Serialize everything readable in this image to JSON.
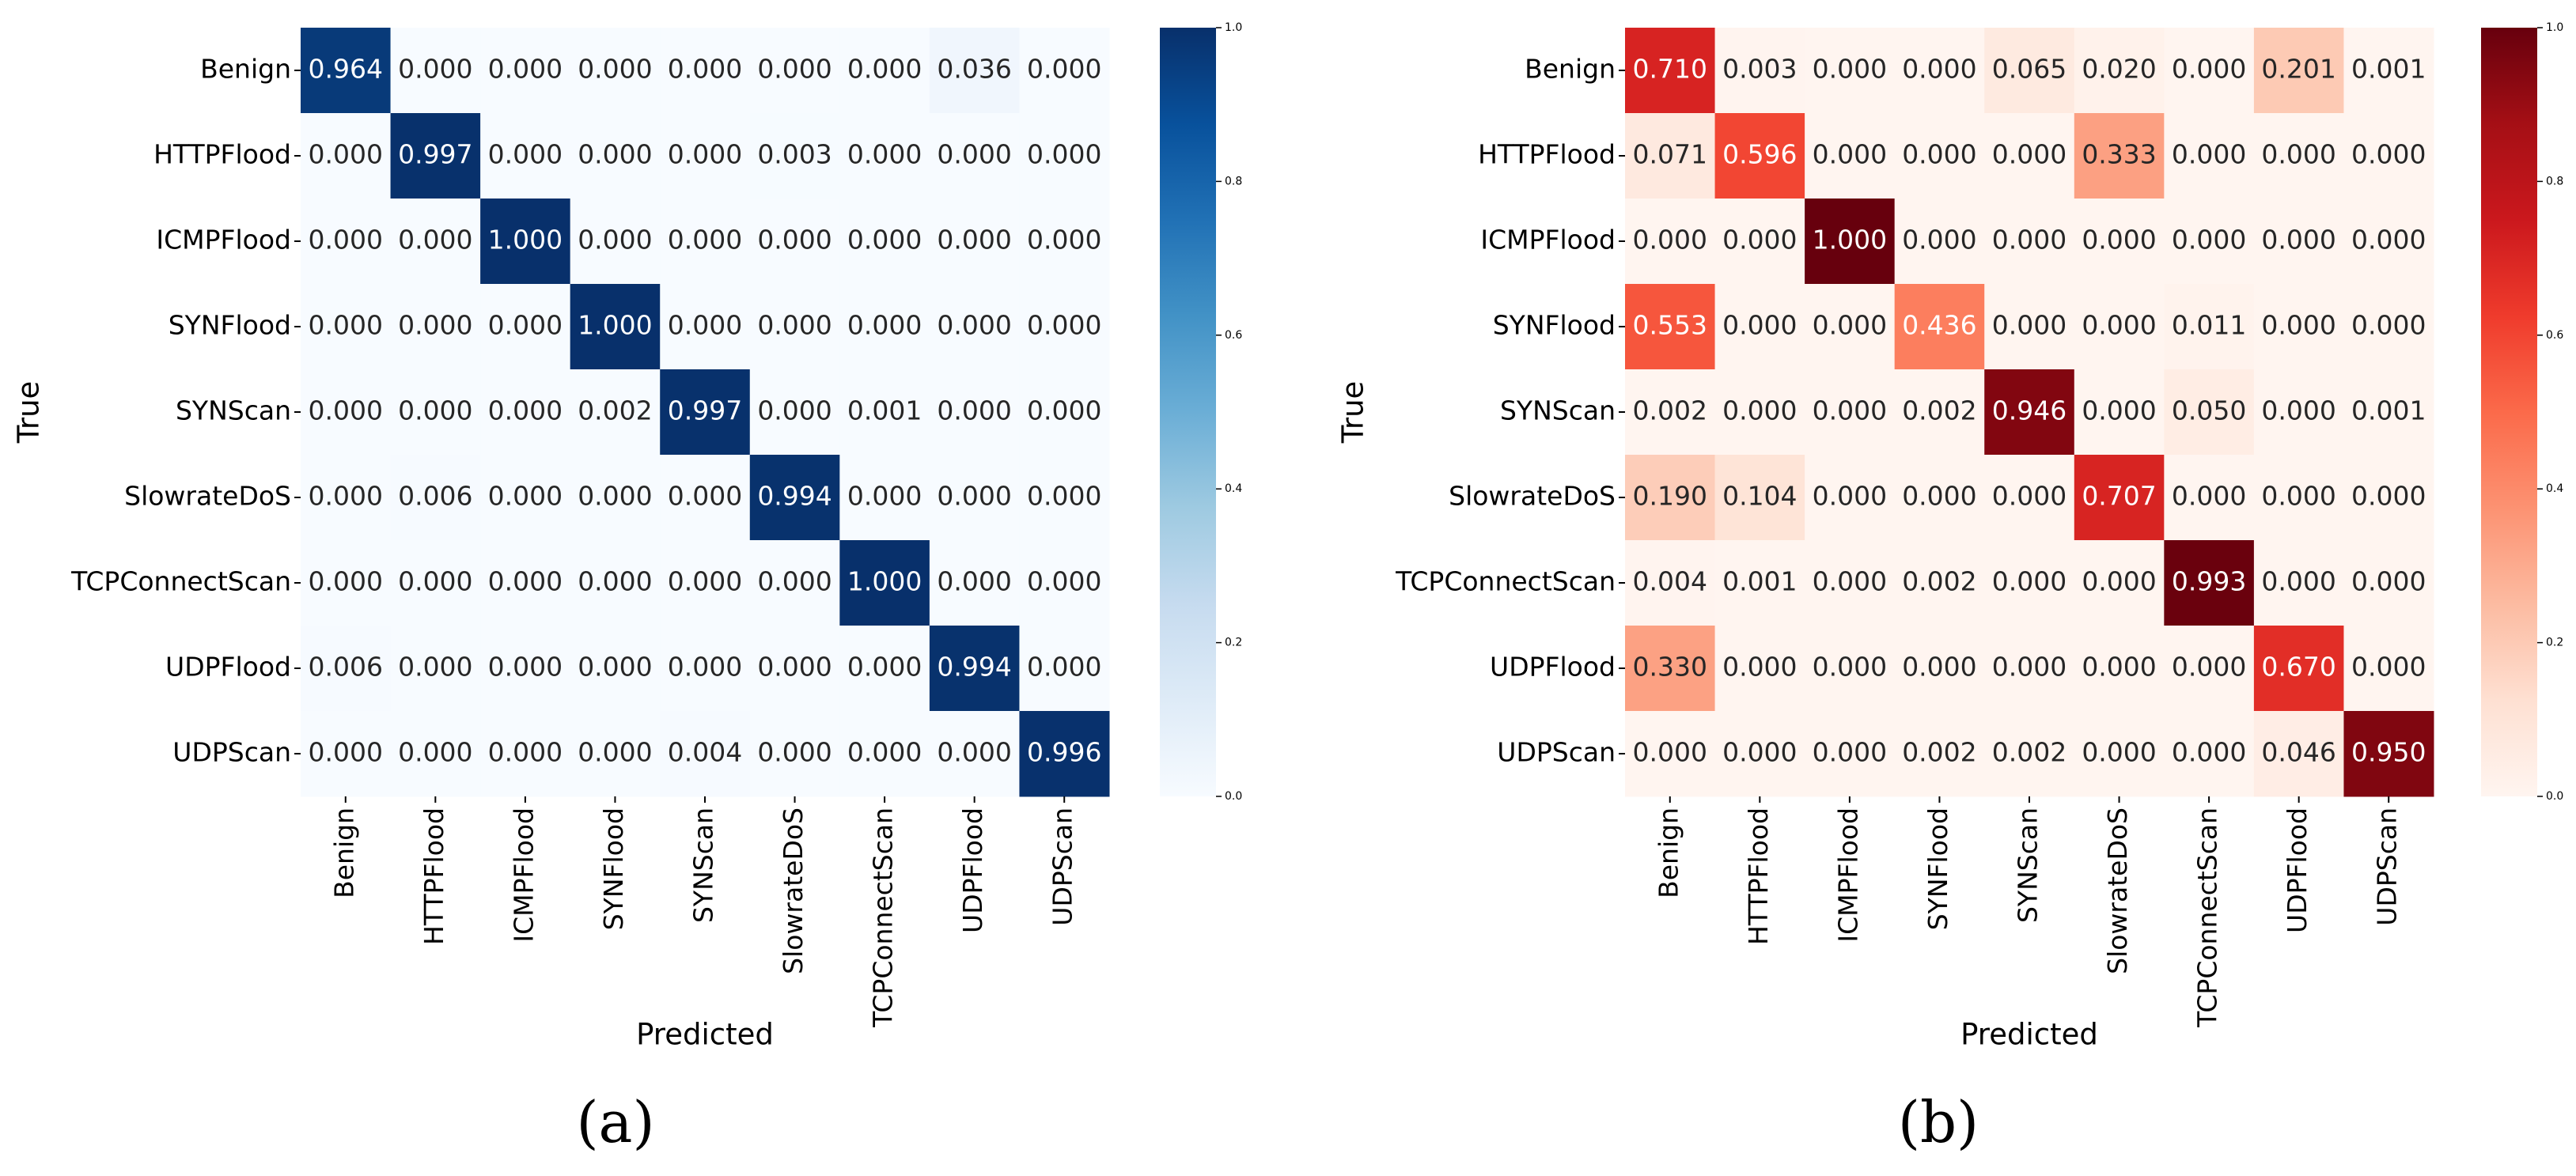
{
  "chart_data": [
    {
      "type": "heatmap",
      "colormap": "Blues",
      "caption": "(a)",
      "xlabel": "Predicted",
      "ylabel": "True",
      "x_categories": [
        "Benign",
        "HTTPFlood",
        "ICMPFlood",
        "SYNFlood",
        "SYNScan",
        "SlowrateDoS",
        "TCPConnectScan",
        "UDPFlood",
        "UDPScan"
      ],
      "y_categories": [
        "Benign",
        "HTTPFlood",
        "ICMPFlood",
        "SYNFlood",
        "SYNScan",
        "SlowrateDoS",
        "TCPConnectScan",
        "UDPFlood",
        "UDPScan"
      ],
      "values": [
        [
          0.964,
          0,
          0,
          0,
          0,
          0,
          0,
          0.036,
          0
        ],
        [
          0,
          0.997,
          0,
          0,
          0,
          0.003,
          0,
          0,
          0
        ],
        [
          0,
          0,
          1,
          0,
          0,
          0,
          0,
          0,
          0
        ],
        [
          0,
          0,
          0,
          1,
          0,
          0,
          0,
          0,
          0
        ],
        [
          0,
          0,
          0,
          0.002,
          0.997,
          0,
          0.001,
          0,
          0
        ],
        [
          0,
          0.006,
          0,
          0,
          0,
          0.994,
          0,
          0,
          0
        ],
        [
          0,
          0,
          0,
          0,
          0,
          0,
          1,
          0,
          0
        ],
        [
          0.006,
          0,
          0,
          0,
          0,
          0,
          0,
          0.994,
          0
        ],
        [
          0,
          0,
          0,
          0,
          0.004,
          0,
          0,
          0,
          0.996
        ]
      ],
      "value_labels": [
        [
          "0.964",
          "0.000",
          "0.000",
          "0.000",
          "0.000",
          "0.000",
          "0.000",
          "0.036",
          "0.000"
        ],
        [
          "0.000",
          "0.997",
          "0.000",
          "0.000",
          "0.000",
          "0.003",
          "0.000",
          "0.000",
          "0.000"
        ],
        [
          "0.000",
          "0.000",
          "1.000",
          "0.000",
          "0.000",
          "0.000",
          "0.000",
          "0.000",
          "0.000"
        ],
        [
          "0.000",
          "0.000",
          "0.000",
          "1.000",
          "0.000",
          "0.000",
          "0.000",
          "0.000",
          "0.000"
        ],
        [
          "0.000",
          "0.000",
          "0.000",
          "0.002",
          "0.997",
          "0.000",
          "0.001",
          "0.000",
          "0.000"
        ],
        [
          "0.000",
          "0.006",
          "0.000",
          "0.000",
          "0.000",
          "0.994",
          "0.000",
          "0.000",
          "0.000"
        ],
        [
          "0.000",
          "0.000",
          "0.000",
          "0.000",
          "0.000",
          "0.000",
          "1.000",
          "0.000",
          "0.000"
        ],
        [
          "0.006",
          "0.000",
          "0.000",
          "0.000",
          "0.000",
          "0.000",
          "0.000",
          "0.994",
          "0.000"
        ],
        [
          "0.000",
          "0.000",
          "0.000",
          "0.000",
          "0.004",
          "0.000",
          "0.000",
          "0.000",
          "0.996"
        ]
      ],
      "clim": [
        0,
        1
      ],
      "cticks": [
        {
          "value": 0,
          "label": "0.0"
        },
        0.2,
        0.4,
        0.6,
        0.8,
        {
          "value": 1,
          "label": "1.0"
        }
      ]
    },
    {
      "type": "heatmap",
      "colormap": "Reds",
      "caption": "(b)",
      "xlabel": "Predicted",
      "ylabel": "True",
      "x_categories": [
        "Benign",
        "HTTPFlood",
        "ICMPFlood",
        "SYNFlood",
        "SYNScan",
        "SlowrateDoS",
        "TCPConnectScan",
        "UDPFlood",
        "UDPScan"
      ],
      "y_categories": [
        "Benign",
        "HTTPFlood",
        "ICMPFlood",
        "SYNFlood",
        "SYNScan",
        "SlowrateDoS",
        "TCPConnectScan",
        "UDPFlood",
        "UDPScan"
      ],
      "values": [
        [
          0.71,
          0.003,
          0,
          0,
          0.065,
          0.02,
          0,
          0.201,
          0.001
        ],
        [
          0.071,
          0.596,
          0,
          0,
          0,
          0.333,
          0,
          0,
          0
        ],
        [
          0,
          0,
          1,
          0,
          0,
          0,
          0,
          0,
          0
        ],
        [
          0.553,
          0,
          0,
          0.436,
          0,
          0,
          0.011,
          0,
          0
        ],
        [
          0.002,
          0,
          0,
          0.002,
          0.946,
          0,
          0.05,
          0,
          0.001
        ],
        [
          0.19,
          0.104,
          0,
          0,
          0,
          0.707,
          0,
          0,
          0
        ],
        [
          0.004,
          0.001,
          0,
          0.002,
          0,
          0,
          0.993,
          0,
          0
        ],
        [
          0.33,
          0,
          0,
          0,
          0,
          0,
          0,
          0.67,
          0
        ],
        [
          0,
          0,
          0,
          0.002,
          0.002,
          0,
          0,
          0.046,
          0.95
        ]
      ],
      "value_labels": [
        [
          "0.710",
          "0.003",
          "0.000",
          "0.000",
          "0.065",
          "0.020",
          "0.000",
          "0.201",
          "0.001"
        ],
        [
          "0.071",
          "0.596",
          "0.000",
          "0.000",
          "0.000",
          "0.333",
          "0.000",
          "0.000",
          "0.000"
        ],
        [
          "0.000",
          "0.000",
          "1.000",
          "0.000",
          "0.000",
          "0.000",
          "0.000",
          "0.000",
          "0.000"
        ],
        [
          "0.553",
          "0.000",
          "0.000",
          "0.436",
          "0.000",
          "0.000",
          "0.011",
          "0.000",
          "0.000"
        ],
        [
          "0.002",
          "0.000",
          "0.000",
          "0.002",
          "0.946",
          "0.000",
          "0.050",
          "0.000",
          "0.001"
        ],
        [
          "0.190",
          "0.104",
          "0.000",
          "0.000",
          "0.000",
          "0.707",
          "0.000",
          "0.000",
          "0.000"
        ],
        [
          "0.004",
          "0.001",
          "0.000",
          "0.002",
          "0.000",
          "0.000",
          "0.993",
          "0.000",
          "0.000"
        ],
        [
          "0.330",
          "0.000",
          "0.000",
          "0.000",
          "0.000",
          "0.000",
          "0.000",
          "0.670",
          "0.000"
        ],
        [
          "0.000",
          "0.000",
          "0.000",
          "0.002",
          "0.002",
          "0.000",
          "0.000",
          "0.046",
          "0.950"
        ]
      ],
      "clim": [
        0,
        1
      ],
      "cticks": [
        {
          "value": 0,
          "label": "0.0"
        },
        0.2,
        0.4,
        0.6,
        0.8,
        {
          "value": 1,
          "label": "1.0"
        }
      ]
    }
  ]
}
